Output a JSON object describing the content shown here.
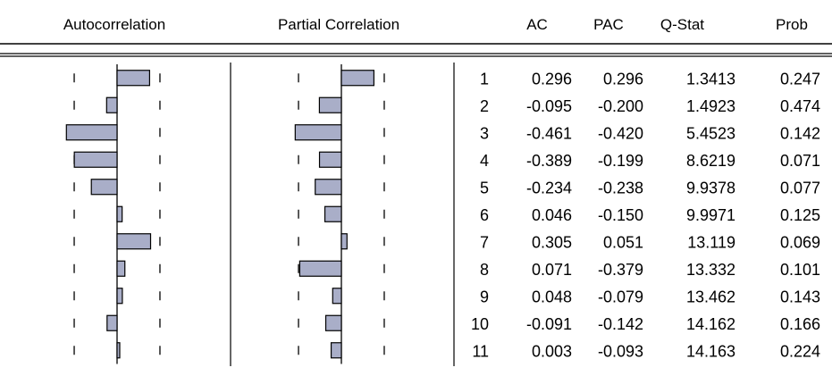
{
  "headers": {
    "autocorrelation": "Autocorrelation",
    "partial_correlation": "Partial Correlation",
    "ac": "AC",
    "pac": "PAC",
    "qstat": "Q-Stat",
    "prob": "Prob"
  },
  "colors": {
    "bar_fill": "#a9aec8",
    "bar_stroke": "#000000",
    "line": "#000000"
  },
  "chart_data": {
    "type": "table",
    "confidence_bound": 0.39,
    "rows": [
      {
        "lag": "1",
        "ac": "0.296",
        "pac": "0.296",
        "q": "1.3413",
        "prob": "0.247"
      },
      {
        "lag": "2",
        "ac": "-0.095",
        "pac": "-0.200",
        "q": "1.4923",
        "prob": "0.474"
      },
      {
        "lag": "3",
        "ac": "-0.461",
        "pac": "-0.420",
        "q": "5.4523",
        "prob": "0.142"
      },
      {
        "lag": "4",
        "ac": "-0.389",
        "pac": "-0.199",
        "q": "8.6219",
        "prob": "0.071"
      },
      {
        "lag": "5",
        "ac": "-0.234",
        "pac": "-0.238",
        "q": "9.9378",
        "prob": "0.077"
      },
      {
        "lag": "6",
        "ac": "0.046",
        "pac": "-0.150",
        "q": "9.9971",
        "prob": "0.125"
      },
      {
        "lag": "7",
        "ac": "0.305",
        "pac": "0.051",
        "q": "13.119",
        "prob": "0.069"
      },
      {
        "lag": "8",
        "ac": "0.071",
        "pac": "-0.379",
        "q": "13.332",
        "prob": "0.101"
      },
      {
        "lag": "9",
        "ac": "0.048",
        "pac": "-0.079",
        "q": "13.462",
        "prob": "0.143"
      },
      {
        "lag": "10",
        "ac": "-0.091",
        "pac": "-0.142",
        "q": "14.162",
        "prob": "0.166"
      },
      {
        "lag": "11",
        "ac": "0.003",
        "pac": "-0.093",
        "q": "14.163",
        "prob": "0.224"
      }
    ]
  }
}
